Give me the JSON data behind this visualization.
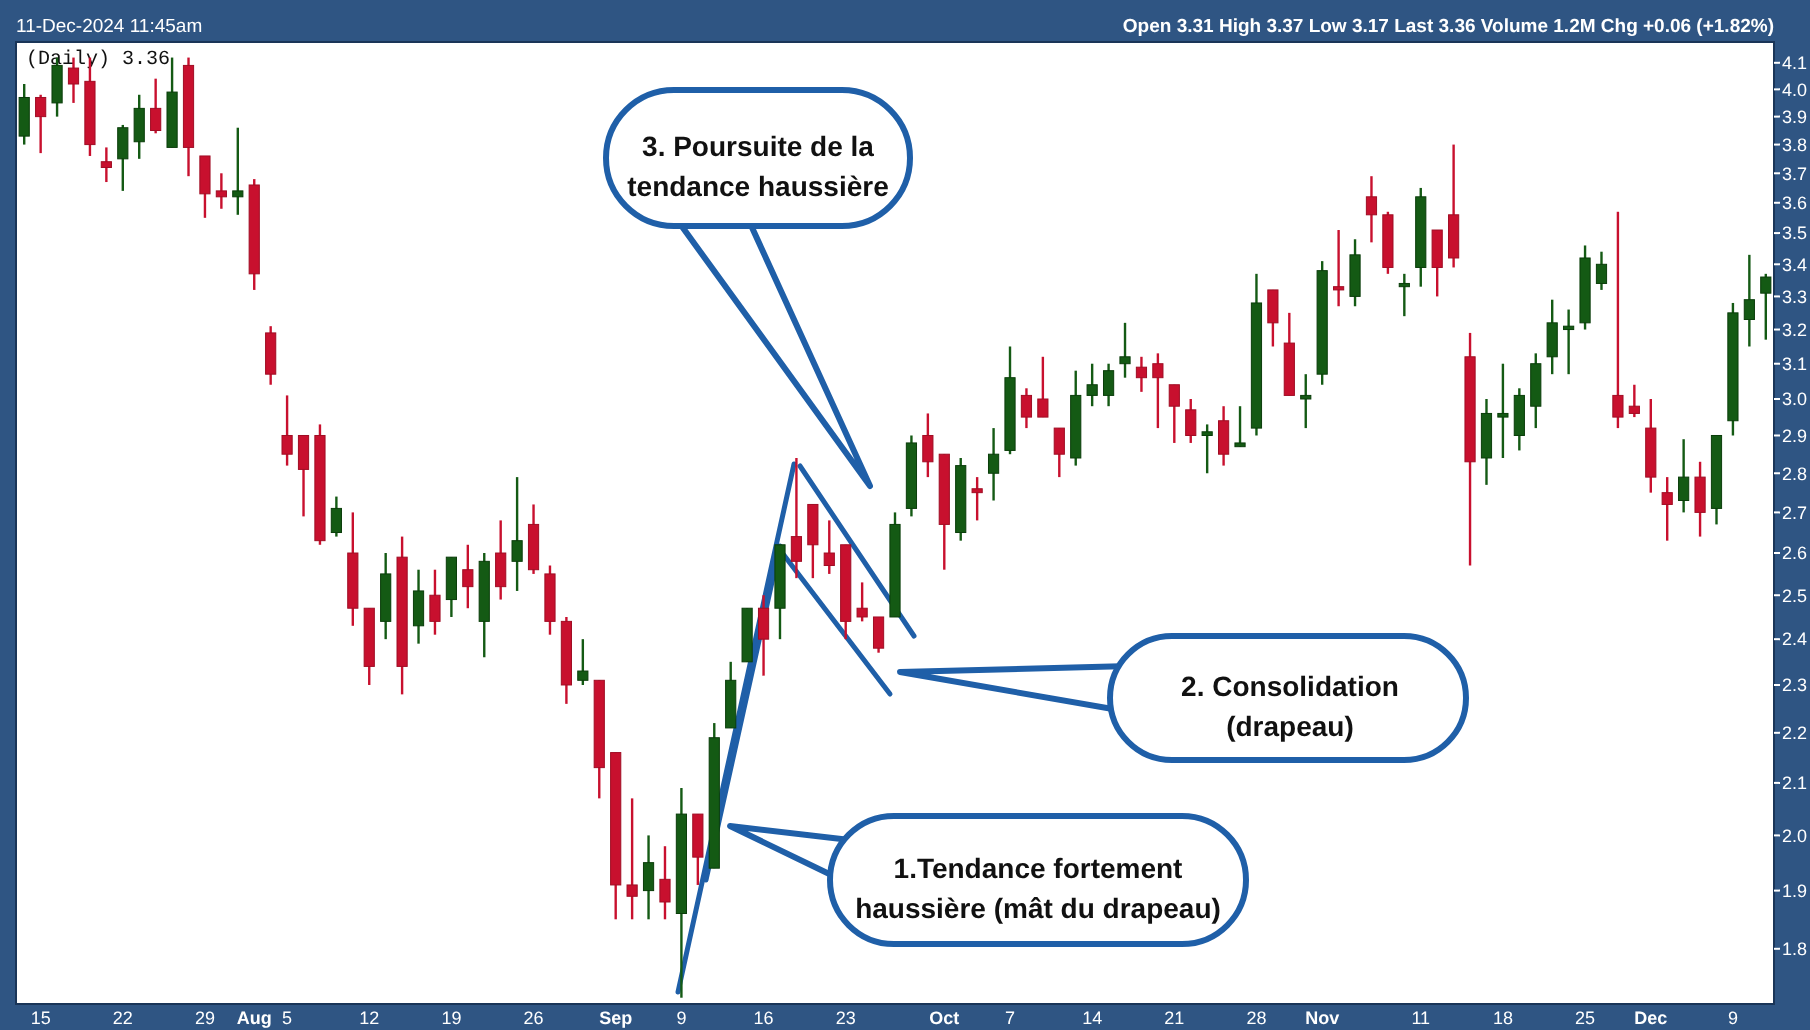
{
  "chart_data": {
    "type": "candlestick",
    "title": "(Daily) 3.36",
    "subtitle": "Open 3.31 High 3.37 Low 3.17 Last 3.36 Volume 1.2M Chg +0.06 (+1.82%)",
    "annotations": [
      "11-Dec-2024 11:45am",
      "3. Poursuite de la tendance haussière",
      "2. Consolidation (drapeau)",
      "1.Tendance fortement haussière (mât du drapeau)"
    ],
    "categories": [
      null,
      "15",
      null,
      null,
      null,
      null,
      "22",
      null,
      null,
      null,
      null,
      "29",
      null,
      null,
      "Aug",
      null,
      "5",
      null,
      null,
      null,
      null,
      "12",
      null,
      null,
      null,
      null,
      "19",
      null,
      null,
      null,
      null,
      "26",
      null,
      null,
      null,
      null,
      "Sep",
      null,
      null,
      null,
      "9",
      null,
      null,
      null,
      null,
      "16",
      null,
      null,
      null,
      null,
      "23",
      null,
      null,
      null,
      null,
      null,
      "Oct",
      null,
      null,
      null,
      "7",
      null,
      null,
      null,
      null,
      "14",
      null,
      null,
      null,
      null,
      "21",
      null,
      null,
      null,
      null,
      "28",
      null,
      null,
      null,
      "Nov",
      null,
      null,
      null,
      null,
      null,
      "11",
      null,
      null,
      null,
      null,
      "18",
      null,
      null,
      null,
      null,
      "25",
      null,
      null,
      null,
      "Dec",
      null,
      null,
      null,
      null,
      "9",
      null,
      null
    ],
    "ohlc": [
      [
        3.83,
        4.02,
        3.8,
        3.97
      ],
      [
        3.97,
        3.98,
        3.77,
        3.9
      ],
      [
        3.95,
        4.12,
        3.9,
        4.09
      ],
      [
        4.08,
        4.12,
        3.95,
        4.02
      ],
      [
        4.03,
        4.12,
        3.76,
        3.8
      ],
      [
        3.74,
        3.79,
        3.67,
        3.72
      ],
      [
        3.75,
        3.87,
        3.64,
        3.86
      ],
      [
        3.81,
        3.98,
        3.75,
        3.93
      ],
      [
        3.93,
        4.04,
        3.84,
        3.85
      ],
      [
        3.79,
        4.12,
        3.79,
        3.99
      ],
      [
        4.09,
        4.12,
        3.69,
        3.79
      ],
      [
        3.76,
        3.76,
        3.55,
        3.63
      ],
      [
        3.64,
        3.7,
        3.58,
        3.62
      ],
      [
        3.62,
        3.86,
        3.56,
        3.64
      ],
      [
        3.66,
        3.68,
        3.32,
        3.37
      ],
      [
        3.19,
        3.21,
        3.04,
        3.07
      ],
      [
        2.9,
        3.01,
        2.82,
        2.85
      ],
      [
        2.9,
        2.9,
        2.69,
        2.81
      ],
      [
        2.9,
        2.93,
        2.62,
        2.63
      ],
      [
        2.65,
        2.74,
        2.64,
        2.71
      ],
      [
        2.6,
        2.7,
        2.43,
        2.47
      ],
      [
        2.47,
        2.47,
        2.3,
        2.34
      ],
      [
        2.44,
        2.6,
        2.4,
        2.55
      ],
      [
        2.59,
        2.64,
        2.28,
        2.34
      ],
      [
        2.43,
        2.56,
        2.39,
        2.51
      ],
      [
        2.5,
        2.56,
        2.41,
        2.44
      ],
      [
        2.49,
        2.59,
        2.45,
        2.59
      ],
      [
        2.56,
        2.62,
        2.47,
        2.52
      ],
      [
        2.44,
        2.6,
        2.36,
        2.58
      ],
      [
        2.6,
        2.68,
        2.49,
        2.52
      ],
      [
        2.58,
        2.79,
        2.51,
        2.63
      ],
      [
        2.67,
        2.72,
        2.55,
        2.56
      ],
      [
        2.55,
        2.57,
        2.41,
        2.44
      ],
      [
        2.44,
        2.45,
        2.26,
        2.3
      ],
      [
        2.31,
        2.4,
        2.3,
        2.33
      ],
      [
        2.31,
        2.31,
        2.07,
        2.13
      ],
      [
        2.16,
        2.16,
        1.85,
        1.91
      ],
      [
        1.91,
        2.07,
        1.85,
        1.89
      ],
      [
        1.9,
        2.0,
        1.85,
        1.95
      ],
      [
        1.92,
        1.98,
        1.85,
        1.88
      ],
      [
        1.86,
        2.09,
        1.72,
        2.04
      ],
      [
        2.04,
        2.04,
        1.91,
        1.96
      ],
      [
        1.94,
        2.22,
        1.94,
        2.19
      ],
      [
        2.21,
        2.35,
        2.21,
        2.31
      ],
      [
        2.35,
        2.47,
        2.35,
        2.47
      ],
      [
        2.47,
        2.5,
        2.32,
        2.4
      ],
      [
        2.47,
        2.62,
        2.4,
        2.62
      ],
      [
        2.64,
        2.84,
        2.54,
        2.58
      ],
      [
        2.72,
        2.72,
        2.54,
        2.62
      ],
      [
        2.6,
        2.68,
        2.55,
        2.57
      ],
      [
        2.62,
        2.62,
        2.4,
        2.44
      ],
      [
        2.47,
        2.53,
        2.44,
        2.45
      ],
      [
        2.45,
        2.45,
        2.37,
        2.38
      ],
      [
        2.45,
        2.7,
        2.45,
        2.67
      ],
      [
        2.71,
        2.9,
        2.69,
        2.88
      ],
      [
        2.9,
        2.96,
        2.79,
        2.83
      ],
      [
        2.85,
        2.85,
        2.56,
        2.67
      ],
      [
        2.65,
        2.84,
        2.63,
        2.82
      ],
      [
        2.76,
        2.79,
        2.68,
        2.75
      ],
      [
        2.8,
        2.92,
        2.73,
        2.85
      ],
      [
        2.86,
        3.15,
        2.85,
        3.06
      ],
      [
        3.01,
        3.03,
        2.92,
        2.95
      ],
      [
        3.0,
        3.12,
        2.95,
        2.95
      ],
      [
        2.92,
        2.92,
        2.79,
        2.85
      ],
      [
        2.84,
        3.08,
        2.82,
        3.01
      ],
      [
        3.01,
        3.1,
        2.98,
        3.04
      ],
      [
        3.01,
        3.1,
        2.98,
        3.08
      ],
      [
        3.1,
        3.22,
        3.06,
        3.12
      ],
      [
        3.09,
        3.12,
        3.02,
        3.06
      ],
      [
        3.1,
        3.13,
        2.92,
        3.06
      ],
      [
        3.04,
        3.04,
        2.88,
        2.98
      ],
      [
        2.97,
        3.0,
        2.88,
        2.9
      ],
      [
        2.9,
        2.93,
        2.8,
        2.91
      ],
      [
        2.94,
        2.98,
        2.82,
        2.85
      ],
      [
        2.87,
        2.98,
        2.87,
        2.88
      ],
      [
        2.92,
        3.37,
        2.9,
        3.28
      ],
      [
        3.32,
        3.32,
        3.15,
        3.22
      ],
      [
        3.16,
        3.25,
        3.01,
        3.01
      ],
      [
        3.0,
        3.07,
        2.92,
        3.01
      ],
      [
        3.07,
        3.41,
        3.04,
        3.38
      ],
      [
        3.33,
        3.51,
        3.27,
        3.32
      ],
      [
        3.3,
        3.48,
        3.27,
        3.43
      ],
      [
        3.62,
        3.69,
        3.47,
        3.56
      ],
      [
        3.56,
        3.57,
        3.37,
        3.39
      ],
      [
        3.33,
        3.37,
        3.24,
        3.34
      ],
      [
        3.39,
        3.65,
        3.33,
        3.62
      ],
      [
        3.51,
        3.51,
        3.3,
        3.39
      ],
      [
        3.56,
        3.8,
        3.39,
        3.42
      ],
      [
        3.12,
        3.19,
        2.57,
        2.83
      ],
      [
        2.84,
        3.0,
        2.77,
        2.96
      ],
      [
        2.95,
        3.1,
        2.84,
        2.96
      ],
      [
        2.9,
        3.03,
        2.86,
        3.01
      ],
      [
        2.98,
        3.13,
        2.92,
        3.1
      ],
      [
        3.12,
        3.29,
        3.07,
        3.22
      ],
      [
        3.2,
        3.26,
        3.07,
        3.21
      ],
      [
        3.22,
        3.46,
        3.2,
        3.42
      ],
      [
        3.34,
        3.44,
        3.32,
        3.4
      ],
      [
        3.01,
        3.57,
        2.92,
        2.95
      ],
      [
        2.98,
        3.04,
        2.95,
        2.96
      ],
      [
        2.92,
        3.0,
        2.75,
        2.79
      ],
      [
        2.75,
        2.79,
        2.63,
        2.72
      ],
      [
        2.73,
        2.89,
        2.7,
        2.79
      ],
      [
        2.79,
        2.83,
        2.64,
        2.7
      ],
      [
        2.71,
        2.9,
        2.67,
        2.9
      ],
      [
        2.94,
        3.28,
        2.9,
        3.25
      ],
      [
        3.23,
        3.43,
        3.15,
        3.29
      ],
      [
        3.31,
        3.37,
        3.17,
        3.36
      ]
    ],
    "log": true,
    "ylim": [
      1.71,
      4.18
    ],
    "yticks": [
      1.8,
      1.9,
      {
        "value": 2,
        "label": "2.0"
      },
      2.1,
      2.2,
      2.3,
      2.4,
      2.5,
      2.6,
      2.7,
      2.8,
      2.9,
      {
        "value": 3,
        "label": "3.0"
      },
      3.1,
      3.2,
      3.3,
      3.4,
      3.5,
      3.6,
      3.7,
      3.8,
      3.9,
      {
        "value": 4,
        "label": "4.0"
      },
      4.1
    ]
  }
}
